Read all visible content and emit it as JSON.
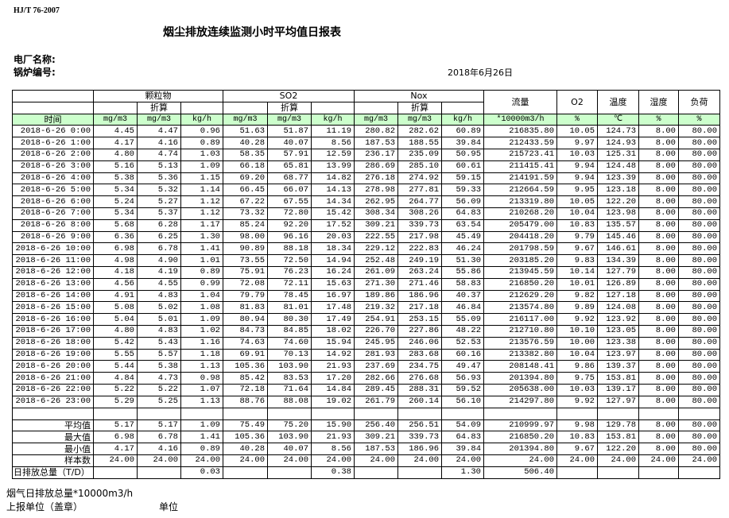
{
  "header": {
    "standard": "HJ/T  76-2007",
    "title": "烟尘排放连续监测小时平均值日报表",
    "plant_label": "电厂名称:",
    "boiler_label": "锅炉编号:",
    "date": "2018年6月26日"
  },
  "columns": {
    "time": "时间",
    "particulate": "颗粒物",
    "so2": "SO2",
    "nox": "Nox",
    "converted": "折算",
    "flow": "流量",
    "o2": "O2",
    "temperature": "温度",
    "humidity": "湿度",
    "load": "负荷",
    "units": [
      "mg/m3",
      "mg/m3",
      "kg/h",
      "mg/m3",
      "mg/m3",
      "kg/h",
      "mg/m3",
      "mg/m3",
      "kg/h",
      "*10000m3/h",
      "%",
      "℃",
      "%",
      "%"
    ]
  },
  "colors": {
    "unit_row_bg": "#ccffcc"
  },
  "rows": [
    [
      "2018-6-26 0:00",
      "4.45",
      "4.47",
      "0.96",
      "51.63",
      "51.87",
      "11.19",
      "280.82",
      "282.62",
      "60.89",
      "216835.80",
      "10.05",
      "124.73",
      "8.00",
      "80.00"
    ],
    [
      "2018-6-26 1:00",
      "4.17",
      "4.16",
      "0.89",
      "40.28",
      "40.07",
      "8.56",
      "187.53",
      "188.55",
      "39.84",
      "212433.59",
      "9.97",
      "124.93",
      "8.00",
      "80.00"
    ],
    [
      "2018-6-26 2:00",
      "4.80",
      "4.74",
      "1.03",
      "58.35",
      "57.91",
      "12.59",
      "236.17",
      "235.09",
      "50.95",
      "215723.41",
      "10.03",
      "125.31",
      "8.00",
      "80.00"
    ],
    [
      "2018-6-26 3:00",
      "5.16",
      "5.13",
      "1.09",
      "66.18",
      "65.81",
      "13.99",
      "286.69",
      "285.10",
      "60.61",
      "211415.41",
      "9.94",
      "124.48",
      "8.00",
      "80.00"
    ],
    [
      "2018-6-26 4:00",
      "5.38",
      "5.36",
      "1.15",
      "69.20",
      "68.77",
      "14.82",
      "276.18",
      "274.92",
      "59.15",
      "214191.59",
      "9.94",
      "123.39",
      "8.00",
      "80.00"
    ],
    [
      "2018-6-26 5:00",
      "5.34",
      "5.32",
      "1.14",
      "66.45",
      "66.07",
      "14.13",
      "278.98",
      "277.81",
      "59.33",
      "212664.59",
      "9.95",
      "123.18",
      "8.00",
      "80.00"
    ],
    [
      "2018-6-26 6:00",
      "5.24",
      "5.27",
      "1.12",
      "67.22",
      "67.55",
      "14.34",
      "262.95",
      "264.77",
      "56.09",
      "213319.80",
      "10.05",
      "122.20",
      "8.00",
      "80.00"
    ],
    [
      "2018-6-26 7:00",
      "5.34",
      "5.37",
      "1.12",
      "73.32",
      "72.80",
      "15.42",
      "308.34",
      "308.26",
      "64.83",
      "210268.20",
      "10.04",
      "123.98",
      "8.00",
      "80.00"
    ],
    [
      "2018-6-26 8:00",
      "5.68",
      "6.28",
      "1.17",
      "85.24",
      "92.20",
      "17.52",
      "309.21",
      "339.73",
      "63.54",
      "205479.00",
      "10.83",
      "135.57",
      "8.00",
      "80.00"
    ],
    [
      "2018-6-26 9:00",
      "6.36",
      "6.25",
      "1.30",
      "98.00",
      "96.16",
      "20.03",
      "222.55",
      "217.98",
      "45.49",
      "204418.20",
      "9.79",
      "145.46",
      "8.00",
      "80.00"
    ],
    [
      "2018-6-26 10:00",
      "6.98",
      "6.78",
      "1.41",
      "90.89",
      "88.18",
      "18.34",
      "229.12",
      "222.83",
      "46.24",
      "201798.59",
      "9.67",
      "146.61",
      "8.00",
      "80.00"
    ],
    [
      "2018-6-26 11:00",
      "4.98",
      "4.90",
      "1.01",
      "73.55",
      "72.50",
      "14.94",
      "252.48",
      "249.19",
      "51.30",
      "203185.20",
      "9.83",
      "134.39",
      "8.00",
      "80.00"
    ],
    [
      "2018-6-26 12:00",
      "4.18",
      "4.19",
      "0.89",
      "75.91",
      "76.23",
      "16.24",
      "261.09",
      "263.24",
      "55.86",
      "213945.59",
      "10.14",
      "127.79",
      "8.00",
      "80.00"
    ],
    [
      "2018-6-26 13:00",
      "4.56",
      "4.55",
      "0.99",
      "72.08",
      "72.11",
      "15.63",
      "271.30",
      "271.46",
      "58.83",
      "216850.20",
      "10.01",
      "126.89",
      "8.00",
      "80.00"
    ],
    [
      "2018-6-26 14:00",
      "4.91",
      "4.83",
      "1.04",
      "79.79",
      "78.45",
      "16.97",
      "189.86",
      "186.96",
      "40.37",
      "212629.20",
      "9.82",
      "127.18",
      "8.00",
      "80.00"
    ],
    [
      "2018-6-26 15:00",
      "5.08",
      "5.02",
      "1.08",
      "81.83",
      "81.01",
      "17.48",
      "219.32",
      "217.18",
      "46.84",
      "213574.80",
      "9.89",
      "124.08",
      "8.00",
      "80.00"
    ],
    [
      "2018-6-26 16:00",
      "5.04",
      "5.01",
      "1.09",
      "80.94",
      "80.30",
      "17.49",
      "254.91",
      "253.15",
      "55.09",
      "216117.00",
      "9.92",
      "123.92",
      "8.00",
      "80.00"
    ],
    [
      "2018-6-26 17:00",
      "4.80",
      "4.83",
      "1.02",
      "84.73",
      "84.85",
      "18.02",
      "226.70",
      "227.86",
      "48.22",
      "212710.80",
      "10.10",
      "123.05",
      "8.00",
      "80.00"
    ],
    [
      "2018-6-26 18:00",
      "5.42",
      "5.43",
      "1.16",
      "74.63",
      "74.60",
      "15.94",
      "245.95",
      "246.06",
      "52.53",
      "213576.59",
      "10.00",
      "123.38",
      "8.00",
      "80.00"
    ],
    [
      "2018-6-26 19:00",
      "5.55",
      "5.57",
      "1.18",
      "69.91",
      "70.13",
      "14.92",
      "281.93",
      "283.68",
      "60.16",
      "213382.80",
      "10.04",
      "123.97",
      "8.00",
      "80.00"
    ],
    [
      "2018-6-26 20:00",
      "5.44",
      "5.38",
      "1.13",
      "105.36",
      "103.90",
      "21.93",
      "237.69",
      "234.75",
      "49.47",
      "208148.41",
      "9.86",
      "139.37",
      "8.00",
      "80.00"
    ],
    [
      "2018-6-26 21:00",
      "4.84",
      "4.73",
      "0.98",
      "85.42",
      "83.53",
      "17.20",
      "282.66",
      "276.68",
      "56.93",
      "201394.80",
      "9.75",
      "153.81",
      "8.00",
      "80.00"
    ],
    [
      "2018-6-26 22:00",
      "5.22",
      "5.22",
      "1.07",
      "72.18",
      "71.64",
      "14.84",
      "289.45",
      "288.31",
      "59.52",
      "205638.00",
      "10.03",
      "139.17",
      "8.00",
      "80.00"
    ],
    [
      "2018-6-26 23:00",
      "5.29",
      "5.25",
      "1.13",
      "88.76",
      "88.08",
      "19.02",
      "261.79",
      "260.14",
      "56.10",
      "214297.80",
      "9.92",
      "127.97",
      "8.00",
      "80.00"
    ]
  ],
  "stats": [
    [
      "平均值",
      "5.17",
      "5.17",
      "1.09",
      "75.49",
      "75.20",
      "15.90",
      "256.40",
      "256.51",
      "54.09",
      "210999.97",
      "9.98",
      "129.78",
      "8.00",
      "80.00"
    ],
    [
      "最大值",
      "6.98",
      "6.78",
      "1.41",
      "105.36",
      "103.90",
      "21.93",
      "309.21",
      "339.73",
      "64.83",
      "216850.20",
      "10.83",
      "153.81",
      "8.00",
      "80.00"
    ],
    [
      "最小值",
      "4.17",
      "4.16",
      "0.89",
      "40.28",
      "40.07",
      "8.56",
      "187.53",
      "186.96",
      "39.84",
      "201394.80",
      "9.67",
      "122.20",
      "8.00",
      "80.00"
    ],
    [
      "样本数",
      "24.00",
      "24.00",
      "24.00",
      "24.00",
      "24.00",
      "24.00",
      "24.00",
      "24.00",
      "24.00",
      "24.00",
      "24.00",
      "24.00",
      "24.00",
      "24.00"
    ],
    [
      "日排放总量（T/D）",
      "",
      "",
      "0.03",
      "",
      "",
      "0.38",
      "",
      "",
      "1.30",
      "506.40",
      "",
      "",
      "",
      ""
    ]
  ],
  "footer": {
    "flue_gas_total": "烟气日排放总量*10000m3/h",
    "reporting_unit": "上报单位（盖章）",
    "unit": "单位"
  }
}
